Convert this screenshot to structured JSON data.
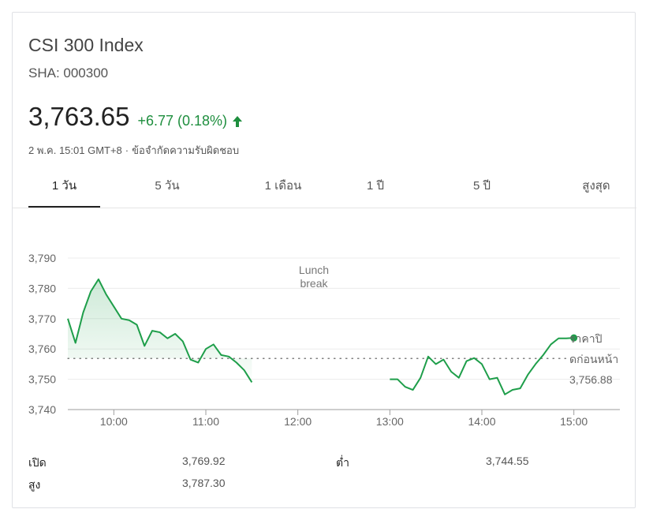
{
  "header": {
    "title": "CSI 300 Index",
    "ticker": "SHA: 000300",
    "price": "3,763.65",
    "change": "+6.77 (0.18%)",
    "timestamp": "2 พ.ค. 15:01 GMT+8",
    "separator": "·",
    "disclaimer": "ข้อจำกัดความรับผิดชอบ"
  },
  "colors": {
    "positive": "#1e8e3e",
    "line": "#1e9e4a"
  },
  "tabs": [
    {
      "label": "1 วัน",
      "active": true
    },
    {
      "label": "5 วัน",
      "active": false
    },
    {
      "label": "1 เดือน",
      "active": false
    },
    {
      "label": "1 ปี",
      "active": false
    },
    {
      "label": "5 ปี",
      "active": false
    },
    {
      "label": "สูงสุด",
      "active": false
    }
  ],
  "chart_data": {
    "type": "line",
    "ylim": [
      3740,
      3790
    ],
    "y_ticks": [
      "3,740",
      "3,750",
      "3,760",
      "3,770",
      "3,780",
      "3,790"
    ],
    "x_ticks": [
      "10:00",
      "11:00",
      "12:00",
      "13:00",
      "14:00",
      "15:00"
    ],
    "annotation": "Lunch break",
    "previous_close": {
      "label": "ราคาปิดก่อนหน้า",
      "value": 3756.88,
      "value_label": "3,756.88"
    },
    "series": [
      {
        "segments": [
          [
            [
              "09:30",
              3770
            ],
            [
              "09:35",
              3762
            ],
            [
              "09:40",
              3772
            ],
            [
              "09:45",
              3779
            ],
            [
              "09:50",
              3783
            ],
            [
              "09:55",
              3778
            ],
            [
              "10:00",
              3774
            ],
            [
              "10:05",
              3770
            ],
            [
              "10:10",
              3769.5
            ],
            [
              "10:15",
              3768
            ],
            [
              "10:20",
              3761
            ],
            [
              "10:25",
              3766
            ],
            [
              "10:30",
              3765.5
            ],
            [
              "10:35",
              3763.5
            ],
            [
              "10:40",
              3765
            ],
            [
              "10:45",
              3762.5
            ],
            [
              "10:50",
              3756.5
            ],
            [
              "10:55",
              3755.5
            ],
            [
              "11:00",
              3760
            ],
            [
              "11:05",
              3761.5
            ],
            [
              "11:10",
              3758
            ],
            [
              "11:15",
              3757.5
            ],
            [
              "11:20",
              3755.5
            ],
            [
              "11:25",
              3753
            ],
            [
              "11:30",
              3749
            ]
          ],
          [
            [
              "13:00",
              3750
            ],
            [
              "13:05",
              3750
            ],
            [
              "13:10",
              3747.5
            ],
            [
              "13:15",
              3746.5
            ],
            [
              "13:20",
              3750.5
            ],
            [
              "13:25",
              3757.5
            ],
            [
              "13:30",
              3755
            ],
            [
              "13:35",
              3756.5
            ],
            [
              "13:40",
              3752.5
            ],
            [
              "13:45",
              3750.5
            ],
            [
              "13:50",
              3756
            ],
            [
              "13:55",
              3757
            ],
            [
              "14:00",
              3755
            ],
            [
              "14:05",
              3750
            ],
            [
              "14:10",
              3750.5
            ],
            [
              "14:15",
              3745
            ],
            [
              "14:20",
              3746.5
            ],
            [
              "14:25",
              3747
            ],
            [
              "14:30",
              3751.5
            ],
            [
              "14:35",
              3755
            ],
            [
              "14:40",
              3758
            ],
            [
              "14:45",
              3761.5
            ],
            [
              "14:50",
              3763.5
            ],
            [
              "14:55",
              3763.5
            ],
            [
              "15:00",
              3763.65
            ]
          ]
        ]
      }
    ]
  },
  "stats": [
    {
      "label": "เปิด",
      "value": "3,769.92"
    },
    {
      "label": "ต่ำ",
      "value": "3,744.55"
    },
    {
      "label": "สูง",
      "value": "3,787.30"
    }
  ]
}
